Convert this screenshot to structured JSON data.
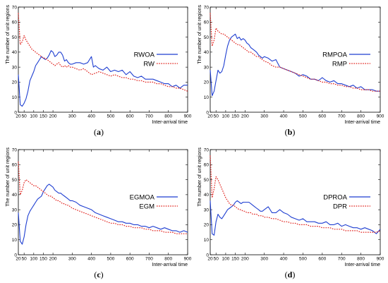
{
  "chart_data": [
    {
      "type": "line",
      "caption": "(a)",
      "xlabel": "Inter-arrival time",
      "ylabel": "The number of unit regions",
      "xlim": [
        20,
        900
      ],
      "ylim": [
        0,
        70
      ],
      "xticks": [
        20,
        50,
        100,
        150,
        200,
        300,
        400,
        500,
        600,
        700,
        800,
        900
      ],
      "yticks": [
        0,
        10,
        20,
        30,
        40,
        50,
        60,
        70
      ],
      "legend_position": "right",
      "series": [
        {
          "name": "RWOA",
          "color": "#1f3fd1",
          "style": "solid",
          "x": [
            20,
            30,
            40,
            50,
            60,
            70,
            80,
            90,
            100,
            110,
            120,
            130,
            140,
            150,
            160,
            170,
            180,
            190,
            200,
            210,
            220,
            230,
            240,
            250,
            260,
            270,
            280,
            290,
            300,
            320,
            340,
            360,
            380,
            400,
            410,
            420,
            440,
            460,
            480,
            500,
            520,
            540,
            560,
            580,
            600,
            620,
            640,
            660,
            680,
            700,
            720,
            740,
            760,
            780,
            800,
            820,
            840,
            860,
            880,
            900
          ],
          "y": [
            25,
            5,
            4,
            6,
            9,
            14,
            21,
            24,
            27,
            31,
            33,
            35,
            37,
            36,
            35,
            36,
            38,
            41,
            40,
            37,
            38,
            40,
            40,
            38,
            34,
            35,
            33,
            32,
            32,
            33,
            33,
            32,
            33,
            37,
            30,
            31,
            29,
            28,
            30,
            27,
            28,
            27,
            28,
            25,
            27,
            24,
            23,
            24,
            22,
            22,
            22,
            21,
            20,
            19,
            19,
            17,
            18,
            16,
            18,
            18
          ]
        },
        {
          "name": "RW",
          "color": "#e0201b",
          "style": "dotted",
          "x": [
            20,
            30,
            40,
            50,
            60,
            70,
            80,
            90,
            100,
            110,
            120,
            130,
            140,
            150,
            160,
            170,
            180,
            190,
            200,
            210,
            220,
            230,
            240,
            250,
            260,
            270,
            280,
            290,
            300,
            320,
            340,
            360,
            380,
            400,
            420,
            440,
            460,
            480,
            500,
            520,
            540,
            560,
            580,
            600,
            620,
            640,
            660,
            680,
            700,
            720,
            740,
            760,
            780,
            800,
            820,
            840,
            860,
            880,
            900
          ],
          "y": [
            66,
            45,
            47,
            51,
            48,
            46,
            44,
            42,
            41,
            40,
            39,
            38,
            37,
            36,
            36,
            35,
            34,
            33,
            32,
            31,
            32,
            33,
            31,
            30,
            31,
            30,
            31,
            30,
            30,
            29,
            28,
            29,
            27,
            25,
            26,
            27,
            26,
            25,
            24,
            25,
            24,
            23,
            23,
            22,
            22,
            21,
            21,
            20,
            20,
            20,
            19,
            19,
            18,
            17,
            17,
            16,
            16,
            15,
            14
          ]
        }
      ]
    },
    {
      "type": "line",
      "caption": "(b)",
      "xlabel": "Inter-arrival time",
      "ylabel": "The number of unit regions",
      "xlim": [
        20,
        900
      ],
      "ylim": [
        0,
        70
      ],
      "xticks": [
        20,
        50,
        100,
        150,
        200,
        300,
        400,
        500,
        600,
        700,
        800,
        900
      ],
      "yticks": [
        0,
        10,
        20,
        30,
        40,
        50,
        60,
        70
      ],
      "legend_position": "right",
      "series": [
        {
          "name": "RMPOA",
          "color": "#1f3fd1",
          "style": "solid",
          "x": [
            20,
            30,
            40,
            50,
            60,
            70,
            80,
            90,
            100,
            110,
            120,
            130,
            140,
            150,
            160,
            170,
            180,
            190,
            200,
            210,
            220,
            230,
            240,
            250,
            260,
            270,
            280,
            290,
            300,
            320,
            340,
            360,
            380,
            400,
            420,
            440,
            460,
            480,
            500,
            520,
            540,
            560,
            580,
            600,
            620,
            640,
            660,
            680,
            700,
            720,
            740,
            760,
            780,
            800,
            820,
            840,
            860,
            880,
            900
          ],
          "y": [
            28,
            11,
            14,
            21,
            28,
            26,
            27,
            31,
            38,
            44,
            48,
            50,
            51,
            52,
            49,
            50,
            48,
            49,
            48,
            46,
            45,
            43,
            42,
            41,
            40,
            38,
            37,
            36,
            37,
            36,
            34,
            35,
            30,
            29,
            28,
            27,
            26,
            24,
            25,
            24,
            22,
            22,
            21,
            23,
            21,
            20,
            21,
            19,
            19,
            18,
            17,
            18,
            16,
            17,
            15,
            15,
            15,
            14,
            14
          ]
        },
        {
          "name": "RMP",
          "color": "#e0201b",
          "style": "dotted",
          "x": [
            20,
            30,
            40,
            50,
            60,
            70,
            80,
            90,
            100,
            110,
            120,
            130,
            140,
            150,
            160,
            170,
            180,
            190,
            200,
            210,
            220,
            230,
            240,
            250,
            260,
            270,
            280,
            290,
            300,
            320,
            340,
            360,
            380,
            400,
            420,
            440,
            460,
            480,
            500,
            520,
            540,
            560,
            580,
            600,
            620,
            640,
            660,
            680,
            700,
            720,
            740,
            760,
            780,
            800,
            820,
            840,
            860,
            880,
            900
          ],
          "y": [
            66,
            44,
            48,
            56,
            54,
            53,
            52,
            52,
            51,
            50,
            49,
            48,
            47,
            46,
            45,
            45,
            44,
            43,
            42,
            41,
            40,
            40,
            39,
            38,
            37,
            37,
            36,
            35,
            34,
            33,
            31,
            30,
            30,
            29,
            28,
            27,
            26,
            25,
            24,
            23,
            22,
            22,
            21,
            20,
            20,
            19,
            19,
            18,
            18,
            17,
            17,
            16,
            16,
            15,
            15,
            15,
            14,
            14,
            14
          ]
        }
      ]
    },
    {
      "type": "line",
      "caption": "(c)",
      "xlabel": "Inter-arrival time",
      "ylabel": "The number of unit regions",
      "xlim": [
        20,
        900
      ],
      "ylim": [
        0,
        70
      ],
      "xticks": [
        20,
        50,
        100,
        150,
        200,
        300,
        400,
        500,
        600,
        700,
        800,
        900
      ],
      "yticks": [
        0,
        10,
        20,
        30,
        40,
        50,
        60,
        70
      ],
      "legend_position": "right",
      "series": [
        {
          "name": "EGMOA",
          "color": "#1f3fd1",
          "style": "solid",
          "x": [
            20,
            30,
            40,
            50,
            60,
            70,
            80,
            90,
            100,
            110,
            120,
            130,
            140,
            150,
            160,
            170,
            180,
            190,
            200,
            210,
            220,
            230,
            240,
            250,
            260,
            270,
            280,
            290,
            300,
            320,
            340,
            360,
            380,
            400,
            420,
            440,
            460,
            480,
            500,
            520,
            540,
            560,
            580,
            600,
            620,
            640,
            660,
            680,
            700,
            720,
            740,
            760,
            780,
            800,
            820,
            840,
            860,
            880,
            900
          ],
          "y": [
            28,
            9,
            7,
            12,
            20,
            26,
            29,
            31,
            33,
            35,
            37,
            38,
            39,
            42,
            44,
            46,
            47,
            46,
            45,
            43,
            42,
            41,
            41,
            40,
            39,
            38,
            37,
            36,
            36,
            35,
            33,
            32,
            31,
            30,
            28,
            27,
            26,
            25,
            24,
            23,
            22,
            22,
            21,
            21,
            20,
            20,
            19,
            19,
            18,
            19,
            18,
            17,
            18,
            17,
            16,
            16,
            15,
            16,
            15
          ]
        },
        {
          "name": "EGM",
          "color": "#e0201b",
          "style": "dotted",
          "x": [
            20,
            30,
            40,
            50,
            60,
            70,
            80,
            90,
            100,
            110,
            120,
            130,
            140,
            150,
            160,
            170,
            180,
            190,
            200,
            210,
            220,
            230,
            240,
            250,
            260,
            270,
            280,
            290,
            300,
            320,
            340,
            360,
            380,
            400,
            420,
            440,
            460,
            480,
            500,
            520,
            540,
            560,
            580,
            600,
            620,
            640,
            660,
            680,
            700,
            720,
            740,
            760,
            780,
            800,
            820,
            840,
            860,
            880,
            900
          ],
          "y": [
            62,
            40,
            43,
            48,
            50,
            49,
            48,
            47,
            46,
            46,
            45,
            44,
            43,
            42,
            41,
            40,
            39,
            39,
            38,
            37,
            36,
            36,
            35,
            34,
            34,
            33,
            33,
            32,
            31,
            30,
            29,
            28,
            27,
            26,
            25,
            24,
            23,
            22,
            21,
            21,
            20,
            20,
            19,
            19,
            18,
            18,
            18,
            17,
            17,
            16,
            16,
            16,
            15,
            15,
            15,
            14,
            14,
            14,
            14
          ]
        }
      ]
    },
    {
      "type": "line",
      "caption": "(d)",
      "xlabel": "Inter-arrival time",
      "ylabel": "The number of unit regions",
      "xlim": [
        20,
        900
      ],
      "ylim": [
        0,
        70
      ],
      "xticks": [
        20,
        50,
        100,
        150,
        200,
        300,
        400,
        500,
        600,
        700,
        800,
        900
      ],
      "yticks": [
        0,
        10,
        20,
        30,
        40,
        50,
        60,
        70
      ],
      "legend_position": "right",
      "series": [
        {
          "name": "DPROA",
          "color": "#1f3fd1",
          "style": "solid",
          "x": [
            20,
            30,
            40,
            50,
            60,
            70,
            80,
            90,
            100,
            110,
            120,
            130,
            140,
            150,
            160,
            170,
            180,
            190,
            200,
            210,
            220,
            230,
            240,
            250,
            260,
            270,
            280,
            290,
            300,
            320,
            340,
            360,
            380,
            400,
            420,
            440,
            460,
            480,
            500,
            520,
            540,
            560,
            580,
            600,
            620,
            640,
            660,
            680,
            700,
            720,
            740,
            760,
            780,
            800,
            820,
            840,
            860,
            880,
            900
          ],
          "y": [
            36,
            14,
            13,
            22,
            27,
            25,
            24,
            26,
            28,
            30,
            31,
            32,
            33,
            35,
            36,
            35,
            34,
            35,
            35,
            35,
            35,
            34,
            33,
            32,
            31,
            30,
            29,
            29,
            30,
            32,
            28,
            28,
            30,
            28,
            27,
            25,
            24,
            23,
            24,
            22,
            22,
            22,
            21,
            21,
            22,
            20,
            20,
            21,
            19,
            20,
            19,
            18,
            18,
            17,
            18,
            17,
            16,
            14,
            17
          ]
        },
        {
          "name": "DPR",
          "color": "#e0201b",
          "style": "dotted",
          "x": [
            20,
            30,
            40,
            50,
            60,
            70,
            80,
            90,
            100,
            110,
            120,
            130,
            140,
            150,
            160,
            170,
            180,
            190,
            200,
            210,
            220,
            230,
            240,
            250,
            260,
            270,
            280,
            290,
            300,
            320,
            340,
            360,
            380,
            400,
            420,
            440,
            460,
            480,
            500,
            520,
            540,
            560,
            580,
            600,
            620,
            640,
            660,
            680,
            700,
            720,
            740,
            760,
            780,
            800,
            820,
            840,
            860,
            880,
            900
          ],
          "y": [
            66,
            38,
            44,
            52,
            50,
            47,
            44,
            41,
            38,
            36,
            34,
            33,
            33,
            32,
            31,
            30,
            30,
            29,
            29,
            28,
            28,
            28,
            27,
            27,
            27,
            26,
            26,
            26,
            25,
            25,
            24,
            24,
            23,
            22,
            22,
            21,
            21,
            20,
            20,
            20,
            19,
            19,
            19,
            18,
            18,
            18,
            17,
            17,
            17,
            16,
            16,
            16,
            16,
            15,
            15,
            15,
            15,
            15,
            16
          ]
        }
      ]
    }
  ]
}
